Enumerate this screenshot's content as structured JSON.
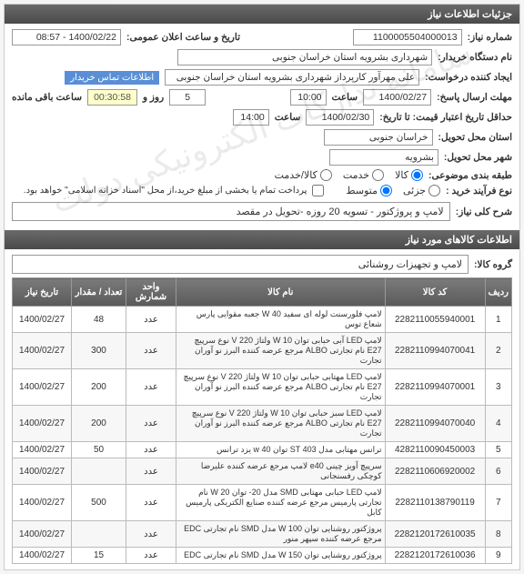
{
  "panel": {
    "title": "جزئیات اطلاعات نیاز"
  },
  "labels": {
    "req_no": "شماره نیاز:",
    "pub_date": "تاریخ و ساعت اعلان عمومی:",
    "buyer_name": "نام دستگاه خریدار:",
    "creator": "ایجاد کننده درخواست:",
    "contact_link": "اطلاعات تماس خریدار",
    "deadline": "مهلت ارسال پاسخ:",
    "hour": "ساعت",
    "day": "روز و",
    "remain": "ساعت باقی مانده",
    "validity": "حداقل تاریخ اعتبار قیمت: تا تاریخ:",
    "delivery_state": "استان محل تحویل:",
    "delivery_city": "شهر محل تحویل:",
    "budget_class": "طبقه بندی موضوعی:",
    "goods": "کالا",
    "service": "خدمت",
    "goods_service": "کالا/خدمت",
    "purchase_type": "نوع فرآیند خرید :",
    "small": "جزئی",
    "medium": "متوسط",
    "payment_note": "پرداخت تمام یا بخشی از مبلغ خرید،از محل \"اسناد خزانه اسلامی\" خواهد بود.",
    "desc": "شرح کلی نیاز:",
    "items_section": "اطلاعات کالاهای مورد نیاز",
    "goods_group": "گروه کالا:"
  },
  "fields": {
    "req_no": "1100005504000013",
    "pub_date": "1400/02/22 - 08:57",
    "buyer_name": "شهرداری بشرویه استان خراسان جنوبی",
    "creator": "علی مهرآور کارپرداز شهرداری بشرویه استان خراسان جنوبی",
    "deadline_date": "1400/02/27",
    "deadline_hour": "10:00",
    "days": "5",
    "countdown": "00:30:58",
    "validity_date": "1400/02/30",
    "validity_hour": "14:00",
    "delivery_state": "خراسان جنوبی",
    "delivery_city": "بشرویه",
    "desc": "لامپ و پروژکتور - تسویه 20 روزه -تحویل در مقصد",
    "goods_group": "لامپ و تجهیزات روشنائی"
  },
  "table": {
    "headers": {
      "row": "ردیف",
      "code": "کد کالا",
      "name": "نام کالا",
      "unit": "واحد شمارش",
      "qty": "تعداد / مقدار",
      "date": "تاریخ نیاز"
    },
    "rows": [
      {
        "n": "1",
        "code": "2282110055940001",
        "name": "لامپ فلورسنت لوله ای سفید W 40 جعبه مقوایی پارس شعاع توس",
        "unit": "عدد",
        "qty": "48",
        "date": "1400/02/27"
      },
      {
        "n": "2",
        "code": "2282110994070041",
        "name": "لامپ LED آبی حبابی توان W 10 ولتاژ V 220 نوع سرپیچ E27 نام تجارتی ALBO مرجع عرضه کننده البرز نو آوران تجارت",
        "unit": "عدد",
        "qty": "300",
        "date": "1400/02/27"
      },
      {
        "n": "3",
        "code": "2282110994070001",
        "name": "لامپ LED مهتابی حبابی توان W 10 ولتاژ V 220 نوع سرپیچ E27 نام تجارتی ALBO مرجع عرضه کننده البرز نو آوران تجارت",
        "unit": "عدد",
        "qty": "200",
        "date": "1400/02/27"
      },
      {
        "n": "4",
        "code": "2282110994070040",
        "name": "لامپ LED سبز حبابی توان W 10 ولتاژ V 220 نوع سرپیچ E27 نام تجارتی ALBO مرجع عرضه کننده البرز نو آوران تجارت",
        "unit": "عدد",
        "qty": "200",
        "date": "1400/02/27"
      },
      {
        "n": "5",
        "code": "4282110090450003",
        "name": "ترانس مهتابی مدل ST 403 توان w 40 یزد ترانس",
        "unit": "عدد",
        "qty": "50",
        "date": "1400/02/27"
      },
      {
        "n": "6",
        "code": "2282110606920002",
        "name": "سرپیچ آویز چینی e40 لامپ مرجع عرضه کننده علیرضا کوچکی رفسنجانی",
        "unit": "عدد",
        "qty": "",
        "date": "1400/02/27"
      },
      {
        "n": "7",
        "code": "2282110138790119",
        "name": "لامپ LED حبابی مهتابی SMD مدل 20- توان W 20 نام تجارتی پارمیس مرجع عرضه کننده صنایع الکتریکی پارمیس کابل",
        "unit": "عدد",
        "qty": "500",
        "date": "1400/02/27"
      },
      {
        "n": "8",
        "code": "2282120172610035",
        "name": "پروژکتور روشنایی توان W 100 مدل SMD نام تجارتی EDC مرجع عرضه کننده سپهر منور",
        "unit": "عدد",
        "qty": "",
        "date": "1400/02/27"
      },
      {
        "n": "9",
        "code": "2282120172610036",
        "name": "پروژکتور روشنایی توان W 150 مدل SMD نام تجارتی EDC",
        "unit": "عدد",
        "qty": "15",
        "date": "1400/02/27"
      }
    ]
  },
  "watermark": "سامانه تدارکات الکترونیکی دولت"
}
